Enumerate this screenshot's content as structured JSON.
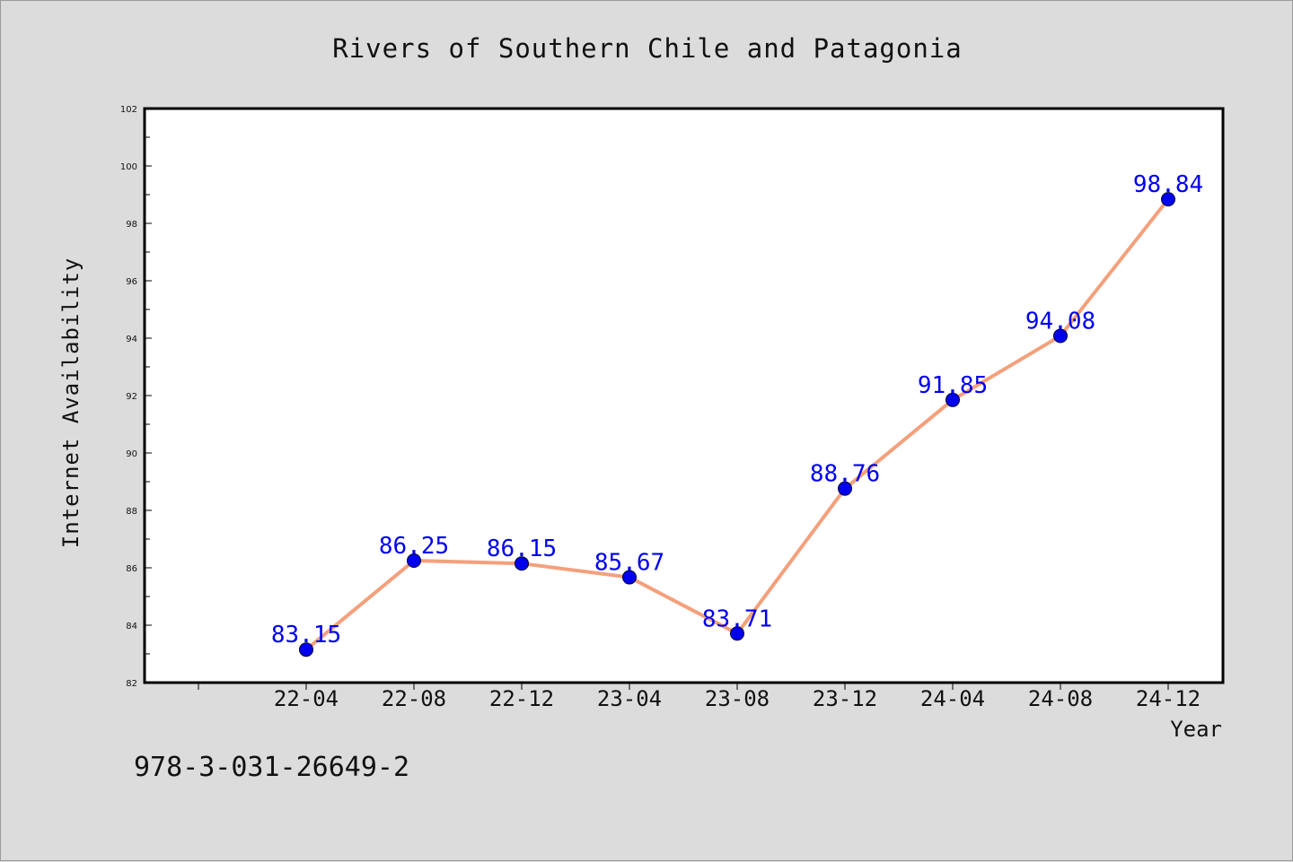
{
  "chart_data": {
    "type": "line",
    "title": "Rivers of Southern Chile and Patagonia",
    "xlabel": "Year",
    "ylabel": "Internet Availability",
    "categories": [
      "22-04",
      "22-08",
      "22-12",
      "23-04",
      "23-08",
      "23-12",
      "24-04",
      "24-08",
      "24-12"
    ],
    "series": [
      {
        "values": [
          83.15,
          86.25,
          86.15,
          85.67,
          83.71,
          88.76,
          91.85,
          94.08,
          98.84
        ],
        "data_labels": [
          "83.15",
          "86.25",
          "86.15",
          "85.67",
          "83.71",
          "88.76",
          "91.85",
          "94.08",
          "98.84"
        ]
      }
    ],
    "ylim": [
      82,
      102
    ],
    "yticks": [
      "82",
      "84",
      "86",
      "88",
      "90",
      "92",
      "94",
      "96",
      "98",
      "100",
      "102"
    ],
    "grid": false,
    "colors": {
      "line": "#f4a07c",
      "marker": "#0000ee",
      "label": "#0000ee"
    }
  },
  "footnote": "978-3-031-26649-2"
}
